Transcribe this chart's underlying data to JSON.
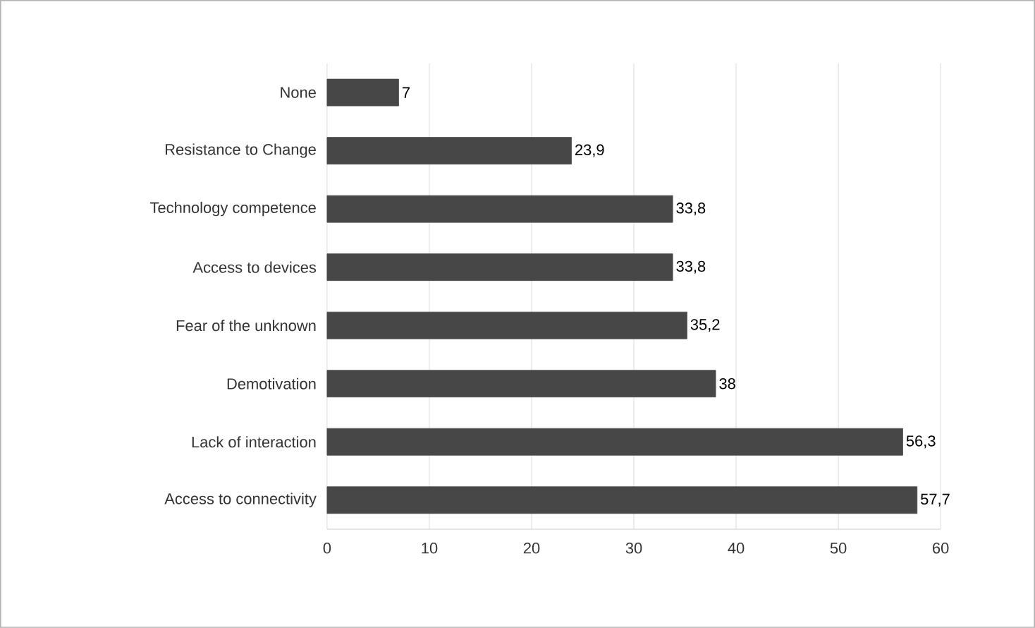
{
  "chart_data": {
    "type": "bar",
    "orientation": "horizontal",
    "categories": [
      "None",
      "Resistance to Change",
      "Technology competence",
      "Access to devices",
      "Fear of the unknown",
      "Demotivation",
      "Lack of interaction",
      "Access to connectivity"
    ],
    "values": [
      7,
      23.9,
      33.8,
      33.8,
      35.2,
      38,
      56.3,
      57.7
    ],
    "value_labels": [
      "7",
      "23,9",
      "33,8",
      "33,8",
      "35,2",
      "38",
      "56,3",
      "57,7"
    ],
    "color": "#474747",
    "xlim": [
      0,
      60
    ],
    "xticks": [
      0,
      10,
      20,
      30,
      40,
      50,
      60
    ],
    "grid": "x"
  }
}
